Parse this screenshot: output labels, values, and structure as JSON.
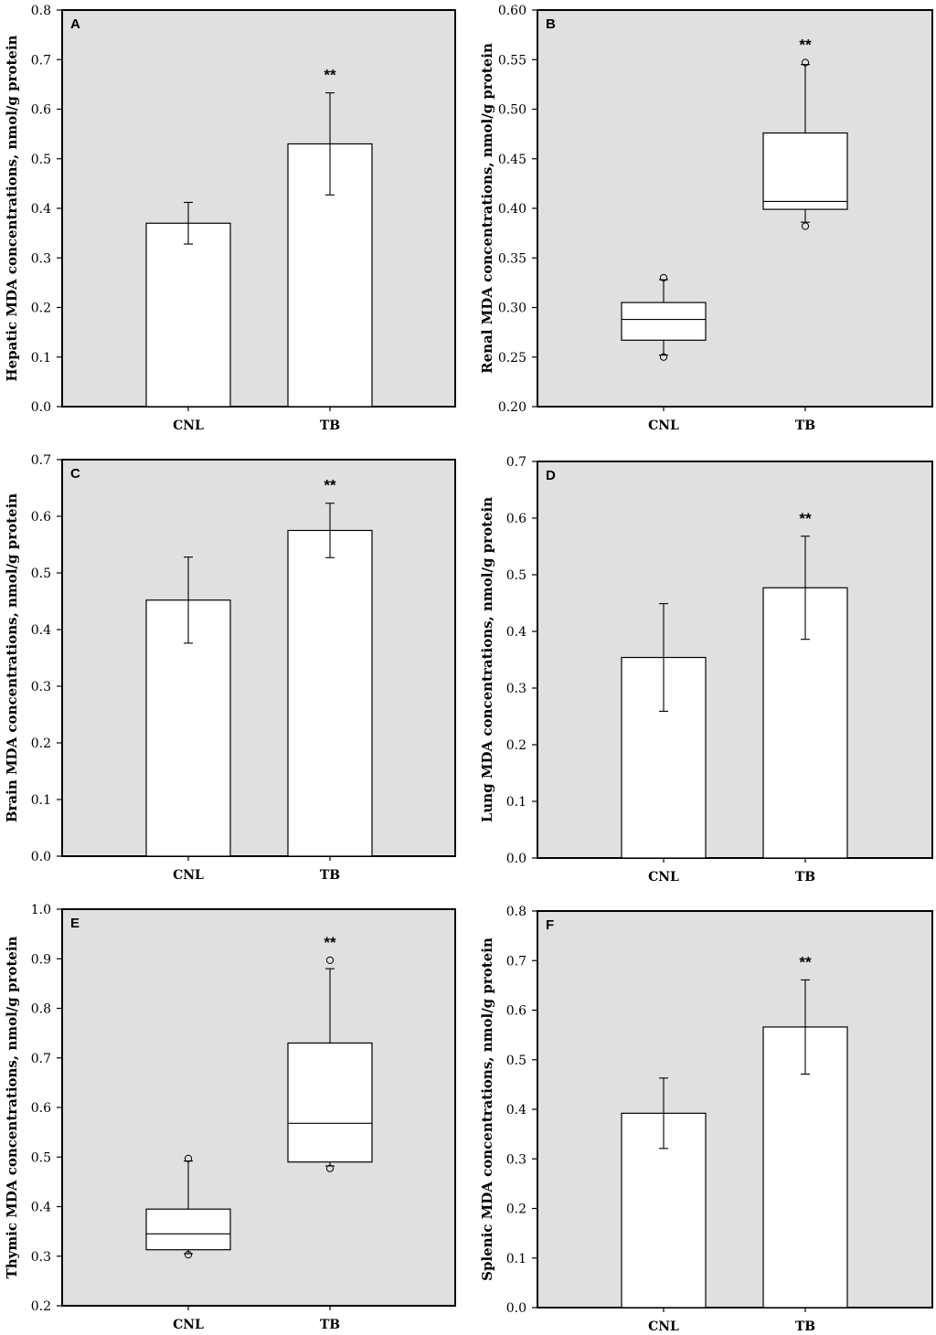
{
  "chart_data": [
    {
      "panel": "A",
      "type": "bar",
      "categories": [
        "CNL",
        "TB"
      ],
      "values": [
        0.37,
        0.53
      ],
      "errors": [
        0.042,
        0.103
      ],
      "significance": [
        "",
        "**"
      ],
      "ylabel": "Hepatic MDA concentrations, nmol/g protein",
      "ylim": [
        0.0,
        0.8
      ],
      "yticks": [
        "0.0",
        "0.1",
        "0.2",
        "0.3",
        "0.4",
        "0.5",
        "0.6",
        "0.7",
        "0.8"
      ],
      "background": "#e0e0e0",
      "grid": false
    },
    {
      "panel": "B",
      "type": "box",
      "categories": [
        "CNL",
        "TB"
      ],
      "boxes": [
        {
          "q1": 0.267,
          "median": 0.288,
          "q3": 0.305,
          "whisker_low": 0.252,
          "whisker_high": 0.328,
          "outliers": [
            0.25,
            0.33
          ]
        },
        {
          "q1": 0.399,
          "median": 0.407,
          "q3": 0.476,
          "whisker_low": 0.386,
          "whisker_high": 0.545,
          "outliers": [
            0.382,
            0.547
          ]
        }
      ],
      "significance": [
        "",
        "**"
      ],
      "ylabel": "Renal MDA concentrations, nmol/g protein",
      "ylim": [
        0.2,
        0.6
      ],
      "yticks": [
        "0.20",
        "0.25",
        "0.30",
        "0.35",
        "0.40",
        "0.45",
        "0.50",
        "0.55",
        "0.60"
      ],
      "background": "#e0e0e0",
      "grid": false
    },
    {
      "panel": "C",
      "type": "bar",
      "categories": [
        "CNL",
        "TB"
      ],
      "values": [
        0.452,
        0.575
      ],
      "errors": [
        0.076,
        0.048
      ],
      "significance": [
        "",
        "**"
      ],
      "ylabel": "Brain MDA concentrations, nmol/g protein",
      "ylim": [
        0.0,
        0.7
      ],
      "yticks": [
        "0.0",
        "0.1",
        "0.2",
        "0.3",
        "0.4",
        "0.5",
        "0.6",
        "0.7"
      ],
      "background": "#e0e0e0",
      "grid": false
    },
    {
      "panel": "D",
      "type": "bar",
      "categories": [
        "CNL",
        "TB"
      ],
      "values": [
        0.354,
        0.477
      ],
      "errors": [
        0.095,
        0.091
      ],
      "significance": [
        "",
        "**"
      ],
      "ylabel": "Lung MDA concentrations, nmol/g protein",
      "ylim": [
        0.0,
        0.7
      ],
      "yticks": [
        "0.0",
        "0.1",
        "0.2",
        "0.3",
        "0.4",
        "0.5",
        "0.6",
        "0.7"
      ],
      "background": "#e0e0e0",
      "grid": false
    },
    {
      "panel": "E",
      "type": "box",
      "categories": [
        "CNL",
        "TB"
      ],
      "boxes": [
        {
          "q1": 0.313,
          "median": 0.345,
          "q3": 0.395,
          "whisker_low": 0.305,
          "whisker_high": 0.492,
          "outliers": [
            0.303,
            0.497
          ]
        },
        {
          "q1": 0.49,
          "median": 0.568,
          "q3": 0.73,
          "whisker_low": 0.482,
          "whisker_high": 0.88,
          "outliers": [
            0.477,
            0.897
          ]
        }
      ],
      "significance": [
        "",
        "**"
      ],
      "ylabel": "Thymic MDA concentrations, nmol/g protein",
      "ylim": [
        0.2,
        1.0
      ],
      "yticks": [
        "0.2",
        "0.3",
        "0.4",
        "0.5",
        "0.6",
        "0.7",
        "0.8",
        "0.9",
        "1.0"
      ],
      "background": "#e0e0e0",
      "grid": false
    },
    {
      "panel": "F",
      "type": "bar",
      "categories": [
        "CNL",
        "TB"
      ],
      "values": [
        0.392,
        0.566
      ],
      "errors": [
        0.071,
        0.095
      ],
      "significance": [
        "",
        "**"
      ],
      "ylabel": "Splenic MDA concentrations, nmol/g protein",
      "ylim": [
        0.0,
        0.8
      ],
      "yticks": [
        "0.0",
        "0.1",
        "0.2",
        "0.3",
        "0.4",
        "0.5",
        "0.6",
        "0.7",
        "0.8"
      ],
      "background": "#e0e0e0",
      "grid": false
    }
  ]
}
